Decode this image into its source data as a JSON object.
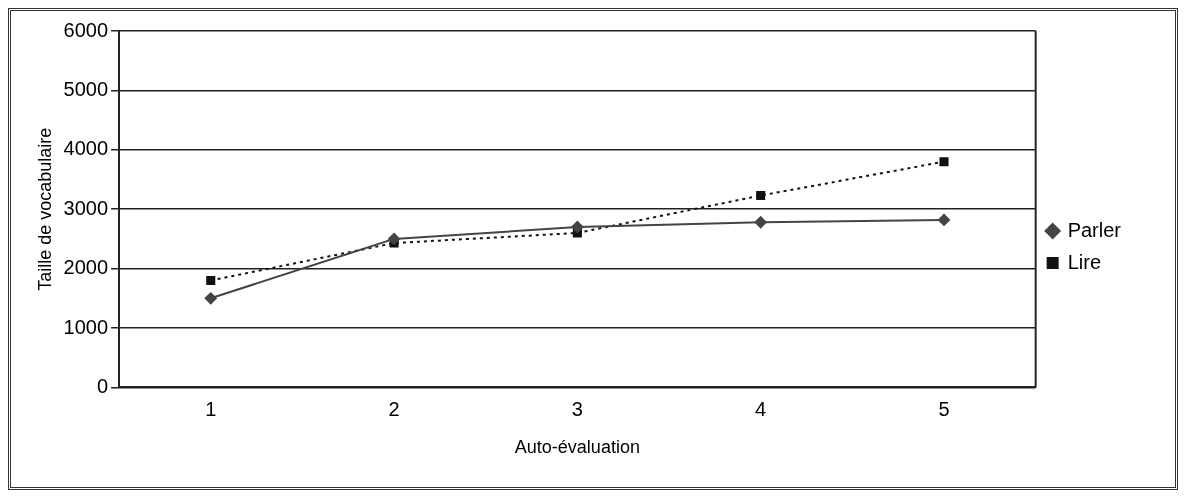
{
  "chart_data": {
    "type": "line",
    "xlabel": "Auto-évaluation",
    "ylabel": "Taille de vocabulaire",
    "categories": [
      "1",
      "2",
      "3",
      "4",
      "5"
    ],
    "series": [
      {
        "name": "Parler",
        "color": "#444444",
        "values": [
          1500,
          2500,
          2700,
          2780,
          2820
        ],
        "marker": "diamond",
        "line_style": "solid"
      },
      {
        "name": "Lire",
        "color": "#111111",
        "values": [
          1800,
          2430,
          2600,
          3230,
          3800
        ],
        "marker": "square",
        "line_style": "dotted"
      }
    ],
    "ylim": [
      0,
      6000
    ],
    "yticks": [
      0,
      1000,
      2000,
      3000,
      4000,
      5000,
      6000
    ],
    "grid": "y",
    "legend": "right"
  }
}
